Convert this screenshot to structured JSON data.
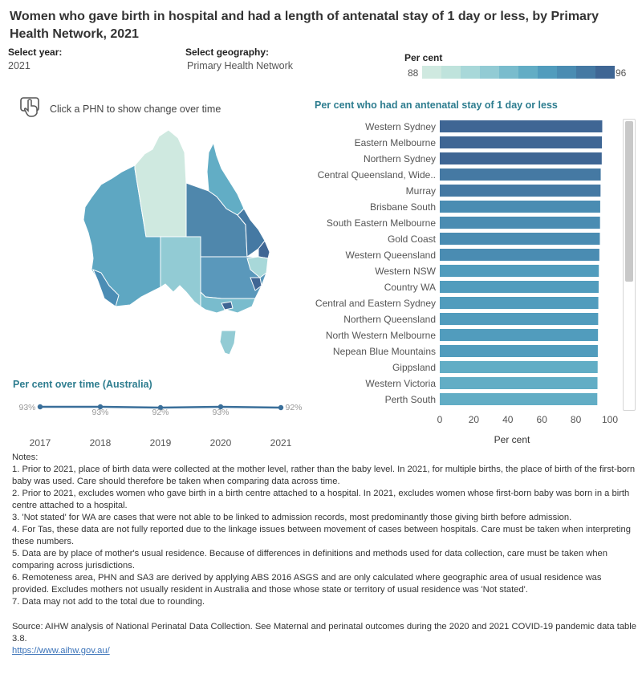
{
  "title": "Women who gave birth in hospital and had a length of antenatal stay of 1 day or less, by Primary Health Network, 2021",
  "controls": {
    "year_label": "Select year:",
    "year_value": "2021",
    "geo_label": "Select geography:",
    "geo_value": "Primary Health Network"
  },
  "legend": {
    "label": "Per cent",
    "min": "88",
    "max": "96",
    "colors": [
      "#cfe9e0",
      "#bfe3dc",
      "#a8d8d9",
      "#92cbd4",
      "#79bccd",
      "#62adc5",
      "#519cbd",
      "#4a8cb2",
      "#4579a3",
      "#3f6694"
    ]
  },
  "map_hint": "Click a PHN to show change over time",
  "icons": {
    "hint": "hand-pointer-icon"
  },
  "colors": {
    "accent": "#2e7d8f",
    "line": "#3a6f9a",
    "link": "#3b73b9"
  },
  "chart_data": [
    {
      "type": "bar",
      "orientation": "horizontal",
      "title": "Per cent who had an antenatal stay of 1 day or less",
      "xlabel": "Per cent",
      "xlim": [
        0,
        100
      ],
      "xticks": [
        0,
        20,
        40,
        60,
        80,
        100
      ],
      "categories": [
        "Western Sydney",
        "Eastern Melbourne",
        "Northern Sydney",
        "Central Queensland, Wide..",
        "Murray",
        "Brisbane South",
        "South Eastern Melbourne",
        "Gold Coast",
        "Western Queensland",
        "Western NSW",
        "Country WA",
        "Central and Eastern Sydney",
        "Northern Queensland",
        "North Western Melbourne",
        "Nepean Blue Mountains",
        "Gippsland",
        "Western Victoria",
        "Perth South"
      ],
      "values": [
        95.5,
        95.3,
        95.2,
        94.6,
        94.5,
        94.3,
        94.2,
        94.1,
        93.8,
        93.5,
        93.4,
        93.2,
        93.1,
        93.0,
        92.9,
        92.8,
        92.7,
        92.6
      ]
    },
    {
      "type": "line",
      "title": "Per cent over time (Australia)",
      "x": [
        "2017",
        "2018",
        "2019",
        "2020",
        "2021"
      ],
      "values": [
        93,
        93,
        92,
        93,
        92
      ],
      "labels": [
        "93%",
        "93%",
        "92%",
        "93%",
        "92%"
      ],
      "ylim": [
        80,
        100
      ]
    }
  ],
  "notes_title": "Notes:",
  "notes": [
    "1. Prior to 2021, place of birth data were collected at the mother level, rather than the baby level. In 2021, for multiple births, the place of birth of the first-born baby was used. Care should therefore be taken when comparing data across time.",
    "2. Prior to 2021, excludes women who gave birth in a birth centre attached to a hospital. In 2021, excludes women whose first-born baby was born in a birth centre attached to a hospital.",
    "3. 'Not stated' for WA are cases that were not able to be linked to admission records, most predominantly those giving birth before admission.",
    "4. For Tas, these data are not fully reported due to the linkage issues between movement of cases between hospitals. Care must be taken when interpreting these numbers.",
    "5. Data are by place of mother's usual residence. Because of differences in definitions and methods used for data collection, care must be taken when comparing across jurisdictions.",
    "6. Remoteness area, PHN and SA3 are derived by applying ABS 2016 ASGS and are only calculated where geographic area of usual residence was provided. Excludes mothers not usually resident in Australia and those whose state or territory of usual residence was 'Not stated'.",
    "7. Data may not add to the total due to rounding."
  ],
  "source": "Source: AIHW analysis of National Perinatal Data Collection. See Maternal and perinatal outcomes during the 2020 and 2021 COVID-19 pandemic data table 3.8.",
  "link": "https://www.aihw.gov.au/"
}
